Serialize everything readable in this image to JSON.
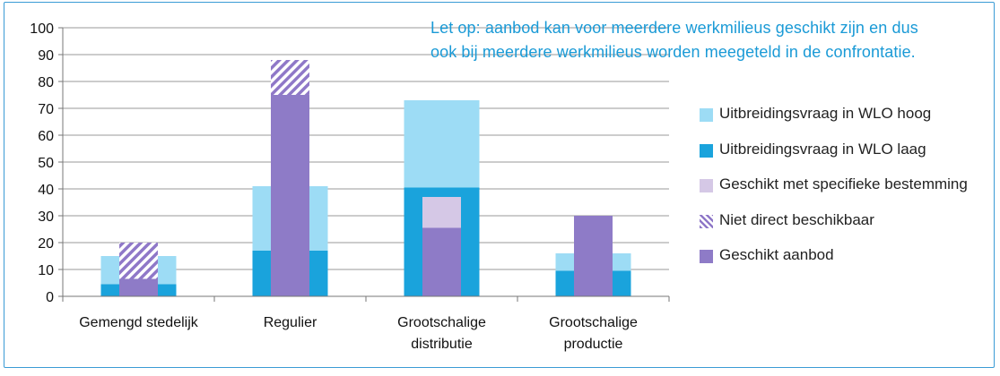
{
  "note": {
    "line1": "Let op: aanbod kan voor meerdere werkmilieus geschikt zijn en dus",
    "line2": "ook bij meerdere werkmilieus worden meegeteld in de confrontatie."
  },
  "colors": {
    "wlo_hoog": "#9ddcf5",
    "wlo_laag": "#1aa3dc",
    "specifiek": "#d5c8e6",
    "niet_direct_a": "#8f78c8",
    "niet_direct_b": "#ffffff",
    "geschikt": "#8e7bc7",
    "note_text": "#1a9ad6",
    "frame": "#3a9bd5"
  },
  "legend": [
    {
      "label": "Uitbreidingsvraag in WLO hoog",
      "color": "#9ddcf5",
      "pattern": "solid"
    },
    {
      "label": "Uitbreidingsvraag in WLO laag",
      "color": "#1aa3dc",
      "pattern": "solid"
    },
    {
      "label": "Geschikt met specifieke bestemming",
      "color": "#d5c8e6",
      "pattern": "solid"
    },
    {
      "label": "Niet direct beschikbaar",
      "color": "#8f78c8",
      "pattern": "hatch"
    },
    {
      "label": "Geschikt aanbod",
      "color": "#8e7bc7",
      "pattern": "solid"
    }
  ],
  "chart_data": {
    "type": "bar",
    "categories": [
      [
        "Gemengd stedelijk"
      ],
      [
        "Regulier"
      ],
      [
        "Grootschalige",
        "distributie"
      ],
      [
        "Grootschalige",
        "productie"
      ]
    ],
    "series": [
      {
        "name": "Uitbreidingsvraag in WLO hoog",
        "values": [
          15,
          41,
          73,
          16
        ]
      },
      {
        "name": "Uitbreidingsvraag in WLO laag",
        "values": [
          4.5,
          17,
          40.5,
          9.5
        ]
      },
      {
        "name": "Geschikt aanbod",
        "values": [
          6.5,
          75,
          25.5,
          30
        ]
      },
      {
        "name": "Geschikt met specifieke bestemming",
        "values": [
          0,
          0,
          11.5,
          0
        ]
      },
      {
        "name": "Niet direct beschikbaar",
        "values": [
          13.5,
          13,
          0,
          0
        ]
      }
    ],
    "ylim": [
      0,
      100
    ],
    "yticks": [
      0,
      10,
      20,
      30,
      40,
      50,
      60,
      70,
      80,
      90,
      100
    ],
    "grid": true,
    "legend_position": "right",
    "xlabel": "",
    "ylabel": ""
  }
}
